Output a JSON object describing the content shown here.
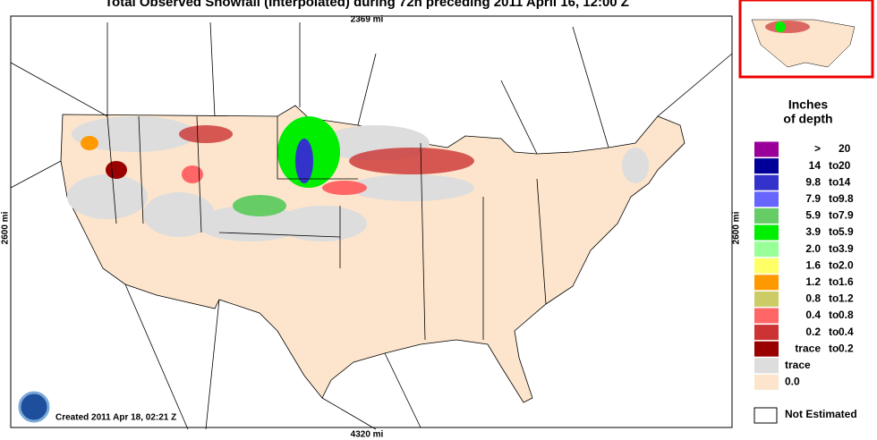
{
  "title": "Total Observed Snowfall (Interpolated) during 72h preceding 2011 April 16, 12:00 Z",
  "scale": {
    "top": "2369 mi",
    "left": "2600 mi",
    "right": "2600 mi",
    "bottom": "4320 mi"
  },
  "created": "Created 2011 Apr 18, 02:21 Z",
  "legend": {
    "title": [
      "Inches",
      "of depth"
    ],
    "items": [
      {
        "low": ">",
        "high": "20",
        "color": "#990099"
      },
      {
        "low": "14",
        "sep": "to",
        "high": "20",
        "color": "#000099"
      },
      {
        "low": "9.8",
        "sep": "to",
        "high": "14",
        "color": "#3333cc"
      },
      {
        "low": "7.9",
        "sep": "to",
        "high": "9.8",
        "color": "#6666ff"
      },
      {
        "low": "5.9",
        "sep": "to",
        "high": "7.9",
        "color": "#66cc66"
      },
      {
        "low": "3.9",
        "sep": "to",
        "high": "5.9",
        "color": "#00ee00"
      },
      {
        "low": "2.0",
        "sep": "to",
        "high": "3.9",
        "color": "#99ff99"
      },
      {
        "low": "1.6",
        "sep": "to",
        "high": "2.0",
        "color": "#ffff66"
      },
      {
        "low": "1.2",
        "sep": "to",
        "high": "1.6",
        "color": "#ff9900"
      },
      {
        "low": "0.8",
        "sep": "to",
        "high": "1.2",
        "color": "#cccc66"
      },
      {
        "low": "0.4",
        "sep": "to",
        "high": "0.8",
        "color": "#ff6666"
      },
      {
        "low": "0.2",
        "sep": "to",
        "high": "0.4",
        "color": "#cc3333"
      },
      {
        "low": "trace",
        "sep": "to",
        "high": "0.2",
        "color": "#990000"
      },
      {
        "low": "trace",
        "color": "#dddddd"
      },
      {
        "low": "0.0",
        "color": "#fce5cc"
      }
    ],
    "not_estimated": "Not Estimated"
  }
}
